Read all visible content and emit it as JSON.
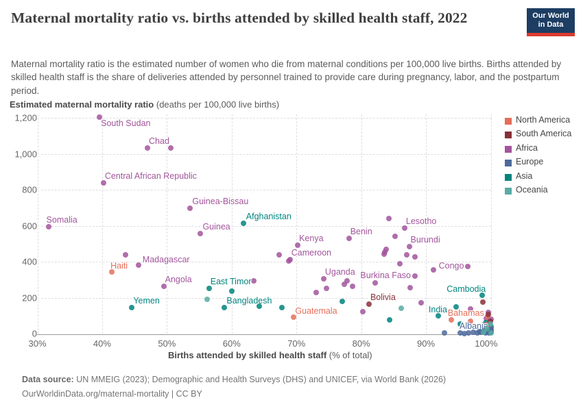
{
  "header": {
    "title": "Maternal mortality ratio vs. births attended by skilled health staff, 2022",
    "logo_line1": "Our World",
    "logo_line2": "in Data",
    "subtitle": "Maternal mortality ratio is the estimated number of women who die from maternal conditions per 100,000 live births. Births attended by skilled health staff is the share of deliveries attended by personnel trained to provide care during pregnancy, labor, and the postpartum period."
  },
  "chart_data": {
    "type": "scatter",
    "title": "Maternal mortality ratio vs. births attended by skilled health staff, 2022",
    "xlabel": "Births attended by skilled health staff",
    "xlabel_unit": "(% of total)",
    "ylabel": "Estimated maternal mortality ratio",
    "ylabel_unit": "(deaths per 100,000 live births)",
    "xlim": [
      30,
      100
    ],
    "ylim": [
      0,
      1200
    ],
    "grid": true,
    "legend_position": "right",
    "x_tick_values": [
      30,
      40,
      50,
      60,
      70,
      80,
      90,
      100
    ],
    "x_tick_labels": [
      "30%",
      "40%",
      "50%",
      "60%",
      "70%",
      "80%",
      "90%",
      "100%"
    ],
    "y_tick_values": [
      0,
      200,
      400,
      600,
      800,
      1000,
      1200
    ],
    "y_tick_labels": [
      "0",
      "200",
      "400",
      "600",
      "800",
      "1,000",
      "1,200"
    ],
    "legend": [
      {
        "label": "North America",
        "color": "#e56e5a"
      },
      {
        "label": "South America",
        "color": "#883039"
      },
      {
        "label": "Africa",
        "color": "#a2559c"
      },
      {
        "label": "Europe",
        "color": "#4c6a9c"
      },
      {
        "label": "Asia",
        "color": "#00847e"
      },
      {
        "label": "Oceania",
        "color": "#58aca4"
      }
    ],
    "series": [
      {
        "name": "Africa",
        "color": "#a2559c",
        "points": [
          {
            "x": 39.6,
            "y": 1205,
            "label": "South Sudan",
            "dx": 2,
            "dy": 2
          },
          {
            "x": 47.0,
            "y": 1032,
            "label": "Chad",
            "dx": 2,
            "dy": -17
          },
          {
            "x": 50.6,
            "y": 1032
          },
          {
            "x": 40.2,
            "y": 838,
            "label": "Central African Republic",
            "dx": 2,
            "dy": -17
          },
          {
            "x": 53.6,
            "y": 698,
            "label": "Guinea-Bissau",
            "dx": 3,
            "dy": -17
          },
          {
            "x": 31.7,
            "y": 594,
            "label": "Somalia",
            "dx": -3,
            "dy": -17
          },
          {
            "x": 55.2,
            "y": 556,
            "label": "Guinea",
            "dx": 3,
            "dy": -17
          },
          {
            "x": 70.2,
            "y": 493,
            "label": "Kenya",
            "dx": 2,
            "dy": -17
          },
          {
            "x": 78.1,
            "y": 531,
            "label": "Benin",
            "dx": 2,
            "dy": -17
          },
          {
            "x": 69.0,
            "y": 413,
            "label": "Cameroon",
            "dx": 2,
            "dy": -17
          },
          {
            "x": 68.8,
            "y": 404
          },
          {
            "x": 45.6,
            "y": 381,
            "label": "Madagascar",
            "dx": 6,
            "dy": -15
          },
          {
            "x": 43.6,
            "y": 437
          },
          {
            "x": 67.3,
            "y": 439
          },
          {
            "x": 84.3,
            "y": 640
          },
          {
            "x": 85.2,
            "y": 541
          },
          {
            "x": 86.7,
            "y": 586,
            "label": "Lesotho",
            "dx": 2,
            "dy": -17
          },
          {
            "x": 87.4,
            "y": 484,
            "label": "Burundi",
            "dx": 2,
            "dy": -17
          },
          {
            "x": 83.8,
            "y": 470
          },
          {
            "x": 83.6,
            "y": 455
          },
          {
            "x": 83.5,
            "y": 443
          },
          {
            "x": 87.0,
            "y": 437
          },
          {
            "x": 88.3,
            "y": 428
          },
          {
            "x": 86.0,
            "y": 387
          },
          {
            "x": 96.5,
            "y": 372,
            "label": "Congo",
            "anchor": "right",
            "dx": -6,
            "dy": -8
          },
          {
            "x": 91.2,
            "y": 353
          },
          {
            "x": 74.2,
            "y": 304,
            "label": "Uganda",
            "dx": 2,
            "dy": -17
          },
          {
            "x": 88.3,
            "y": 321,
            "label": "Burkina Faso",
            "anchor": "right",
            "dx": -6,
            "dy": -8
          },
          {
            "x": 49.5,
            "y": 264,
            "label": "Angola",
            "dx": 2,
            "dy": -17
          },
          {
            "x": 77.8,
            "y": 293
          },
          {
            "x": 77.4,
            "y": 275
          },
          {
            "x": 78.7,
            "y": 263
          },
          {
            "x": 82.2,
            "y": 282
          },
          {
            "x": 74.6,
            "y": 250
          },
          {
            "x": 73.0,
            "y": 228
          },
          {
            "x": 63.4,
            "y": 292
          },
          {
            "x": 80.3,
            "y": 122
          },
          {
            "x": 87.6,
            "y": 255
          },
          {
            "x": 89.2,
            "y": 170
          },
          {
            "x": 96.9,
            "y": 137
          },
          {
            "x": 99.3,
            "y": 85
          },
          {
            "x": 100,
            "y": 80
          },
          {
            "x": 99.6,
            "y": 120
          }
        ]
      },
      {
        "name": "Asia",
        "color": "#00847e",
        "points": [
          {
            "x": 61.8,
            "y": 613,
            "label": "Afghanistan",
            "dx": 4,
            "dy": -17
          },
          {
            "x": 56.5,
            "y": 253,
            "label": "East Timor",
            "dx": 2,
            "dy": -17
          },
          {
            "x": 60.0,
            "y": 235
          },
          {
            "x": 44.6,
            "y": 146,
            "label": "Yemen",
            "dx": 2,
            "dy": -17
          },
          {
            "x": 58.9,
            "y": 146,
            "label": "Bangladesh",
            "dx": 3,
            "dy": -17
          },
          {
            "x": 64.3,
            "y": 153
          },
          {
            "x": 67.8,
            "y": 143
          },
          {
            "x": 77.1,
            "y": 179
          },
          {
            "x": 84.4,
            "y": 76
          },
          {
            "x": 98.7,
            "y": 213,
            "label": "Cambodia",
            "anchor": "right",
            "dx": 5,
            "dy": -16
          },
          {
            "x": 91.9,
            "y": 99,
            "label": "India",
            "anchor": "right",
            "dx": 13,
            "dy": -16
          },
          {
            "x": 94.6,
            "y": 150
          },
          {
            "x": 95.3,
            "y": 54
          },
          {
            "x": 99.2,
            "y": 60
          },
          {
            "x": 100,
            "y": 40
          },
          {
            "x": 98.8,
            "y": 25
          },
          {
            "x": 99.6,
            "y": 12
          },
          {
            "x": 100,
            "y": 15
          }
        ]
      },
      {
        "name": "North America",
        "color": "#e56e5a",
        "points": [
          {
            "x": 41.5,
            "y": 343,
            "label": "Haiti",
            "dx": -2,
            "dy": -16
          },
          {
            "x": 69.6,
            "y": 90,
            "label": "Guatemala",
            "dx": 2,
            "dy": -16
          },
          {
            "x": 93.9,
            "y": 75,
            "label": "Bahamas",
            "dx": -5,
            "dy": -17
          },
          {
            "x": 96.9,
            "y": 67
          },
          {
            "x": 99.5,
            "y": 95
          },
          {
            "x": 99.9,
            "y": 30
          },
          {
            "x": 99.3,
            "y": 50
          }
        ]
      },
      {
        "name": "South America",
        "color": "#883039",
        "points": [
          {
            "x": 81.2,
            "y": 164,
            "label": "Bolivia",
            "dx": 2,
            "dy": -17
          },
          {
            "x": 98.8,
            "y": 176
          },
          {
            "x": 99.6,
            "y": 105
          },
          {
            "x": 99.9,
            "y": 68
          },
          {
            "x": 99.3,
            "y": 38
          }
        ]
      },
      {
        "name": "Europe",
        "color": "#4c6a9c",
        "points": [
          {
            "x": 97.3,
            "y": 8,
            "label": "Albania",
            "dx": -20,
            "dy": -16
          },
          {
            "x": 92.9,
            "y": 4
          },
          {
            "x": 95.3,
            "y": 2
          },
          {
            "x": 95.9,
            "y": 1
          },
          {
            "x": 96.6,
            "y": 5
          },
          {
            "x": 97.9,
            "y": 3
          },
          {
            "x": 98.5,
            "y": 6
          },
          {
            "x": 99.0,
            "y": 15
          },
          {
            "x": 99.4,
            "y": 10
          },
          {
            "x": 99.7,
            "y": 3
          },
          {
            "x": 100,
            "y": 8
          },
          {
            "x": 99.2,
            "y": 2
          },
          {
            "x": 98.2,
            "y": 12
          },
          {
            "x": 100,
            "y": 25
          },
          {
            "x": 99.8,
            "y": 18
          }
        ]
      },
      {
        "name": "Oceania",
        "color": "#58aca4",
        "points": [
          {
            "x": 56.2,
            "y": 190
          },
          {
            "x": 86.2,
            "y": 140
          },
          {
            "x": 99.9,
            "y": 55
          },
          {
            "x": 99.4,
            "y": 28
          },
          {
            "x": 98.9,
            "y": 8
          },
          {
            "x": 100,
            "y": 3
          }
        ]
      }
    ]
  },
  "footer": {
    "source_label": "Data source:",
    "source": "UN MMEIG (2023); Demographic and Health Surveys (DHS) and UNICEF, via World Bank (2026)",
    "license": "OurWorldinData.org/maternal-mortality | CC BY"
  }
}
